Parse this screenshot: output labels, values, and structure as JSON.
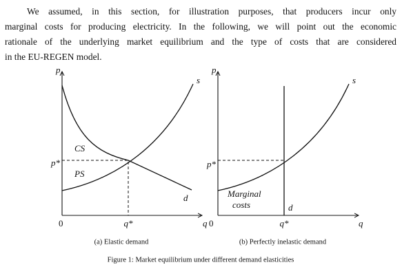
{
  "paragraph": {
    "lines": [
      "We assumed, in this section, for illustration purposes, that producers incur only",
      "marginal costs for producing electricity. In the following, we will point out the economic",
      "rationale of the underlying market equilibrium and the type of costs that are considered",
      "in the EU-REGEN model."
    ]
  },
  "figure": {
    "panel_a": {
      "p": "p",
      "s": "s",
      "cs": "CS",
      "ps": "PS",
      "p_star": "p*",
      "d": "d",
      "origin": "0",
      "q_star": "q*",
      "q": "q",
      "caption": "(a) Elastic demand"
    },
    "panel_b": {
      "p": "p",
      "s": "s",
      "p_star": "p*",
      "marginal": "Marginal",
      "costs": "costs",
      "d": "d",
      "origin": "0",
      "q_star": "q*",
      "q": "q",
      "caption": "(b) Perfectly inelastic demand"
    },
    "caption": "Figure 1: Market equilibrium under different demand elasticities"
  }
}
